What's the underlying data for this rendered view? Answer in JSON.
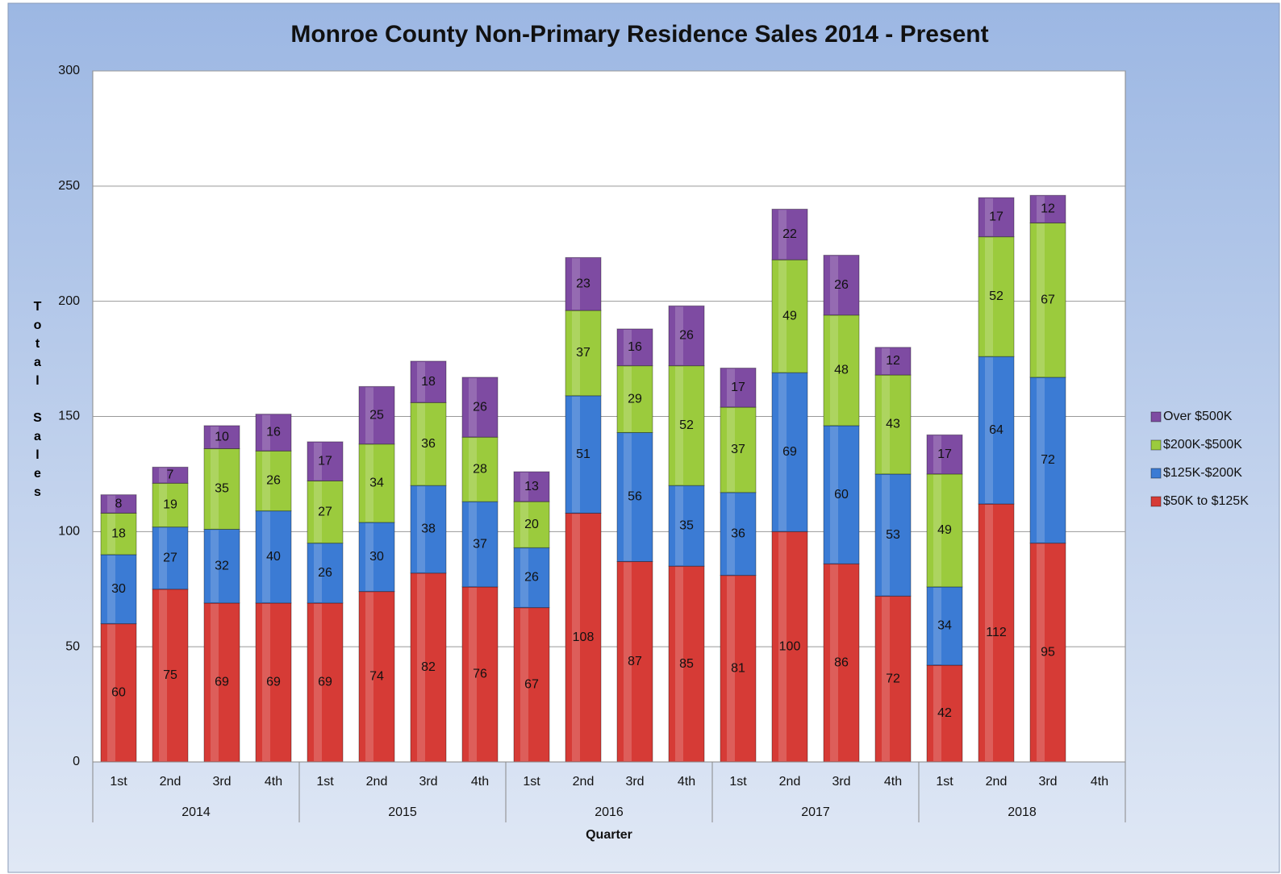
{
  "chart_data": {
    "type": "stacked_bar",
    "title": "Monroe County Non-Primary Residence Sales 2014 - Present",
    "x_label": "Quarter",
    "y_label": "Total Sales",
    "categories": [
      "1st",
      "2nd",
      "3rd",
      "4th",
      "1st",
      "2nd",
      "3rd",
      "4th",
      "1st",
      "2nd",
      "3rd",
      "4th",
      "1st",
      "2nd",
      "3rd",
      "4th",
      "1st",
      "2nd",
      "3rd",
      "4th"
    ],
    "groups": [
      "2014",
      "2015",
      "2016",
      "2017",
      "2018"
    ],
    "series": [
      {
        "name": "$50K to $125K",
        "color": "#d63b36",
        "values": [
          60,
          75,
          69,
          69,
          69,
          74,
          82,
          76,
          67,
          108,
          87,
          85,
          81,
          100,
          86,
          72,
          42,
          112,
          95,
          null
        ]
      },
      {
        "name": "$125K-$200K",
        "color": "#3b7bd4",
        "values": [
          30,
          27,
          32,
          40,
          26,
          30,
          38,
          37,
          26,
          51,
          56,
          35,
          36,
          69,
          60,
          53,
          34,
          64,
          72,
          null
        ]
      },
      {
        "name": "$200K-$500K",
        "color": "#9bcb3d",
        "values": [
          18,
          19,
          35,
          26,
          27,
          34,
          36,
          28,
          20,
          37,
          29,
          52,
          37,
          49,
          48,
          43,
          49,
          52,
          67,
          null
        ]
      },
      {
        "name": "Over $500K",
        "color": "#7e4ba2",
        "values": [
          8,
          7,
          10,
          16,
          17,
          25,
          18,
          26,
          13,
          23,
          16,
          26,
          17,
          22,
          26,
          12,
          17,
          17,
          12,
          null
        ]
      }
    ],
    "ylim": [
      0,
      300
    ],
    "yticks": [
      0,
      50,
      100,
      150,
      200,
      250,
      300
    ],
    "grid": true,
    "legend": "right"
  }
}
